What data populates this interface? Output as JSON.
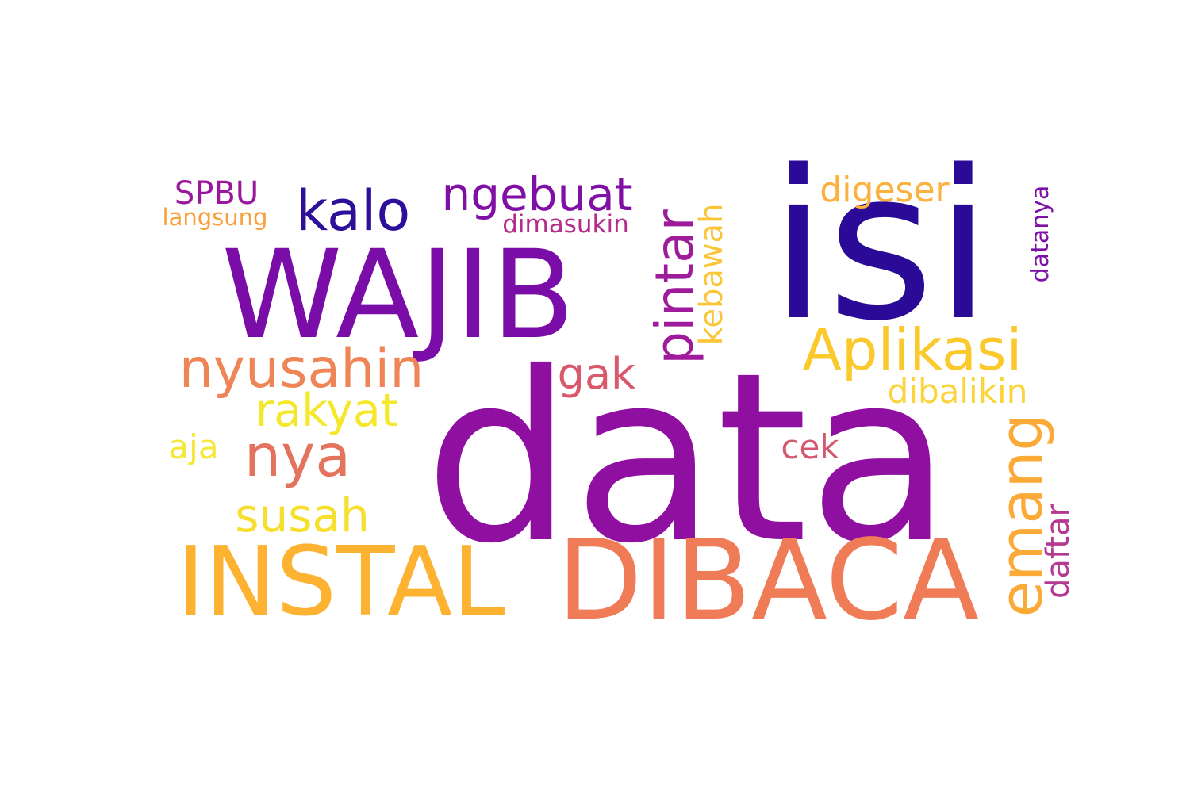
{
  "wordcloud": {
    "words": [
      {
        "id": "isi",
        "text": "isi",
        "color": "#2a0a96"
      },
      {
        "id": "data",
        "text": "data",
        "color": "#8f10a0"
      },
      {
        "id": "wajib",
        "text": "WAJIB",
        "color": "#7a0da8"
      },
      {
        "id": "dibaca",
        "text": "DIBACA",
        "color": "#ef7c57"
      },
      {
        "id": "instal",
        "text": "INSTAL",
        "color": "#fdb331"
      },
      {
        "id": "kalo",
        "text": "kalo",
        "color": "#2e0f99"
      },
      {
        "id": "ngebuat",
        "text": "ngebuat",
        "color": "#7f0fa5"
      },
      {
        "id": "pintar",
        "text": "pintar",
        "color": "#9e1b9c"
      },
      {
        "id": "kebawah",
        "text": "kebawah",
        "color": "#fbc538"
      },
      {
        "id": "digeser",
        "text": "digeser",
        "color": "#fbb13b"
      },
      {
        "id": "spbu",
        "text": "SPBU",
        "color": "#9a179d"
      },
      {
        "id": "langsung",
        "text": "langsung",
        "color": "#f9a03a"
      },
      {
        "id": "dimasukin",
        "text": "dimasukin",
        "color": "#b62c8a"
      },
      {
        "id": "datanya",
        "text": "datanya",
        "color": "#7d10a6"
      },
      {
        "id": "aplikasi",
        "text": "Aplikasi",
        "color": "#fcc92c"
      },
      {
        "id": "nyusahin",
        "text": "nyusahin",
        "color": "#ef8557"
      },
      {
        "id": "gak",
        "text": "gak",
        "color": "#d8586c"
      },
      {
        "id": "dibalikin",
        "text": "dibalikin",
        "color": "#fbd43b"
      },
      {
        "id": "rakyat",
        "text": "rakyat",
        "color": "#f5e72a"
      },
      {
        "id": "nya",
        "text": "nya",
        "color": "#e3735d"
      },
      {
        "id": "emang",
        "text": "emang",
        "color": "#fbaa37"
      },
      {
        "id": "cek",
        "text": "cek",
        "color": "#d4586e"
      },
      {
        "id": "aja",
        "text": "aja",
        "color": "#f4e737"
      },
      {
        "id": "susah",
        "text": "susah",
        "color": "#f7df2e"
      },
      {
        "id": "daftar",
        "text": "daftar",
        "color": "#b33991"
      }
    ]
  }
}
